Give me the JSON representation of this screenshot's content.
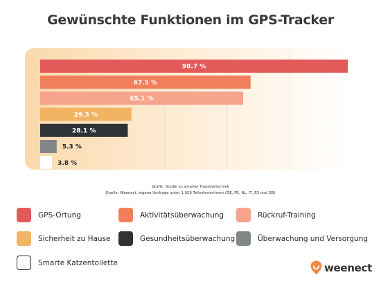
{
  "title": "Gewünschte Funktionen im GPS-Tracker",
  "source": {
    "line1": "Grafik: Studie zu smarter Haustiertechnik",
    "line2": "Quelle: Weenect, eigene Umfrage unter 1.929 TeilnehmerInnen (DE, FR, NL, IT, ES und GB)"
  },
  "chart_data": {
    "type": "bar",
    "orientation": "horizontal",
    "categories": [
      "GPS-Ortung",
      "Aktivitätsüberwachung",
      "Rückruf-Training",
      "Sicherheit zu Hause",
      "Gesundheitsüberwachung",
      "Überwachung und Versorgung",
      "Smarte Katzentoilette"
    ],
    "values": [
      98.7,
      67.5,
      65.1,
      29.3,
      28.1,
      5.3,
      3.8
    ],
    "value_labels": [
      "98.7 %",
      "67.5 %",
      "65.1 %",
      "29.3 %",
      "28.1 %",
      "5.3 %",
      "3.8 %"
    ],
    "unit": "%",
    "colors": [
      "#e25a5a",
      "#f17f5c",
      "#f6a48c",
      "#f2b363",
      "#2f3335",
      "#838686",
      "#ffffff"
    ],
    "label_colors": [
      "#ffffff",
      "#ffffff",
      "#ffffff",
      "#ffffff",
      "#ffffff",
      "#2b2b2b",
      "#2b2b2b"
    ],
    "xlim": [
      0,
      100
    ],
    "grid": true,
    "legend_position": "bottom"
  },
  "legend": [
    {
      "label": "GPS-Ortung",
      "color": "#e25a5a"
    },
    {
      "label": "Aktivitätsüberwachung",
      "color": "#f17f5c"
    },
    {
      "label": "Rückruf-Training",
      "color": "#f6a48c"
    },
    {
      "label": "Sicherheit zu Hause",
      "color": "#f2b363"
    },
    {
      "label": "Gesundheitsüberwachung",
      "color": "#2f3335"
    },
    {
      "label": "Überwachung und Versorgung",
      "color": "#838686"
    },
    {
      "label": "Smarte Katzentoilette",
      "color": "#ffffff"
    }
  ],
  "logo": {
    "text": "weenect",
    "icon": "location-pin-icon",
    "color": "#f08a4b"
  }
}
